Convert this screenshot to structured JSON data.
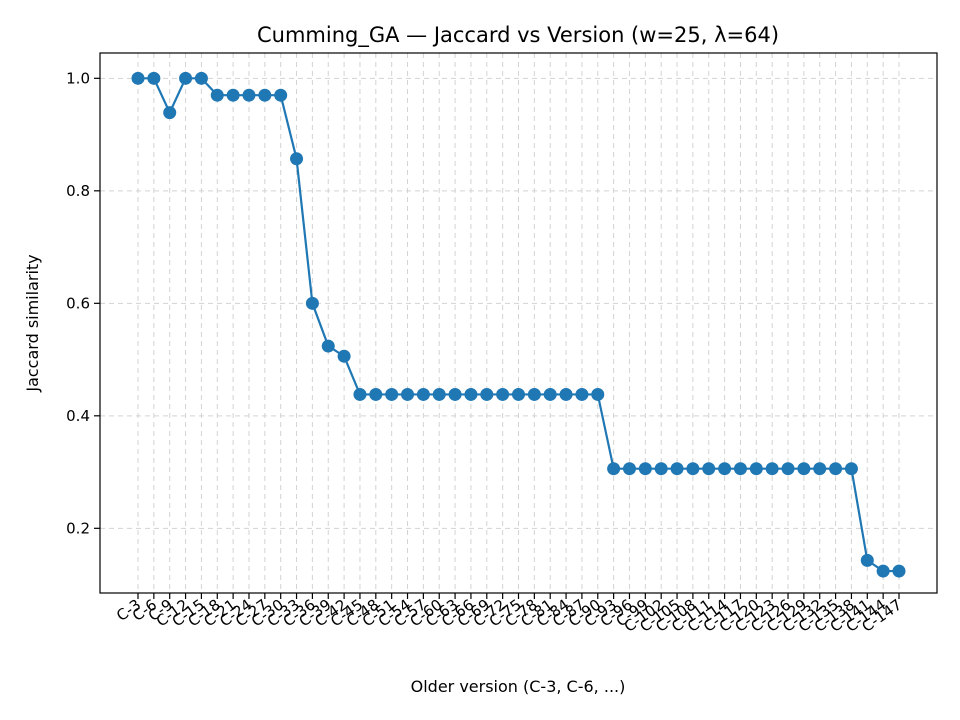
{
  "chart_data": {
    "type": "line",
    "title": "Cumming_GA — Jaccard vs Version (w=25, λ=64)",
    "xlabel": "Older version (C-3, C-6, ...)",
    "ylabel": "Jaccard similarity",
    "ylim": [
      0.085,
      1.045
    ],
    "yticks": [
      0.2,
      0.4,
      0.6,
      0.8,
      1.0
    ],
    "ytick_labels": [
      "0.2",
      "0.4",
      "0.6",
      "0.8",
      "1.0"
    ],
    "grid": true,
    "marker": "circle",
    "color": "#1f77b4",
    "categories": [
      "C-3",
      "C-6",
      "C-9",
      "C-12",
      "C-15",
      "C-18",
      "C-21",
      "C-24",
      "C-27",
      "C-30",
      "C-33",
      "C-36",
      "C-39",
      "C-42",
      "C-45",
      "C-48",
      "C-51",
      "C-54",
      "C-57",
      "C-60",
      "C-63",
      "C-66",
      "C-69",
      "C-72",
      "C-75",
      "C-78",
      "C-81",
      "C-84",
      "C-87",
      "C-90",
      "C-93",
      "C-96",
      "C-99",
      "C-102",
      "C-105",
      "C-108",
      "C-111",
      "C-114",
      "C-117",
      "C-120",
      "C-123",
      "C-126",
      "C-129",
      "C-132",
      "C-135",
      "C-138",
      "C-141",
      "C-144",
      "C-147"
    ],
    "values": [
      1.0,
      1.0,
      0.939,
      1.0,
      1.0,
      0.97,
      0.97,
      0.97,
      0.97,
      0.97,
      0.857,
      0.6,
      0.524,
      0.506,
      0.438,
      0.438,
      0.438,
      0.438,
      0.438,
      0.438,
      0.438,
      0.438,
      0.438,
      0.438,
      0.438,
      0.438,
      0.438,
      0.438,
      0.438,
      0.438,
      0.306,
      0.306,
      0.306,
      0.306,
      0.306,
      0.306,
      0.306,
      0.306,
      0.306,
      0.306,
      0.306,
      0.306,
      0.306,
      0.306,
      0.306,
      0.306,
      0.143,
      0.124,
      0.124
    ]
  }
}
